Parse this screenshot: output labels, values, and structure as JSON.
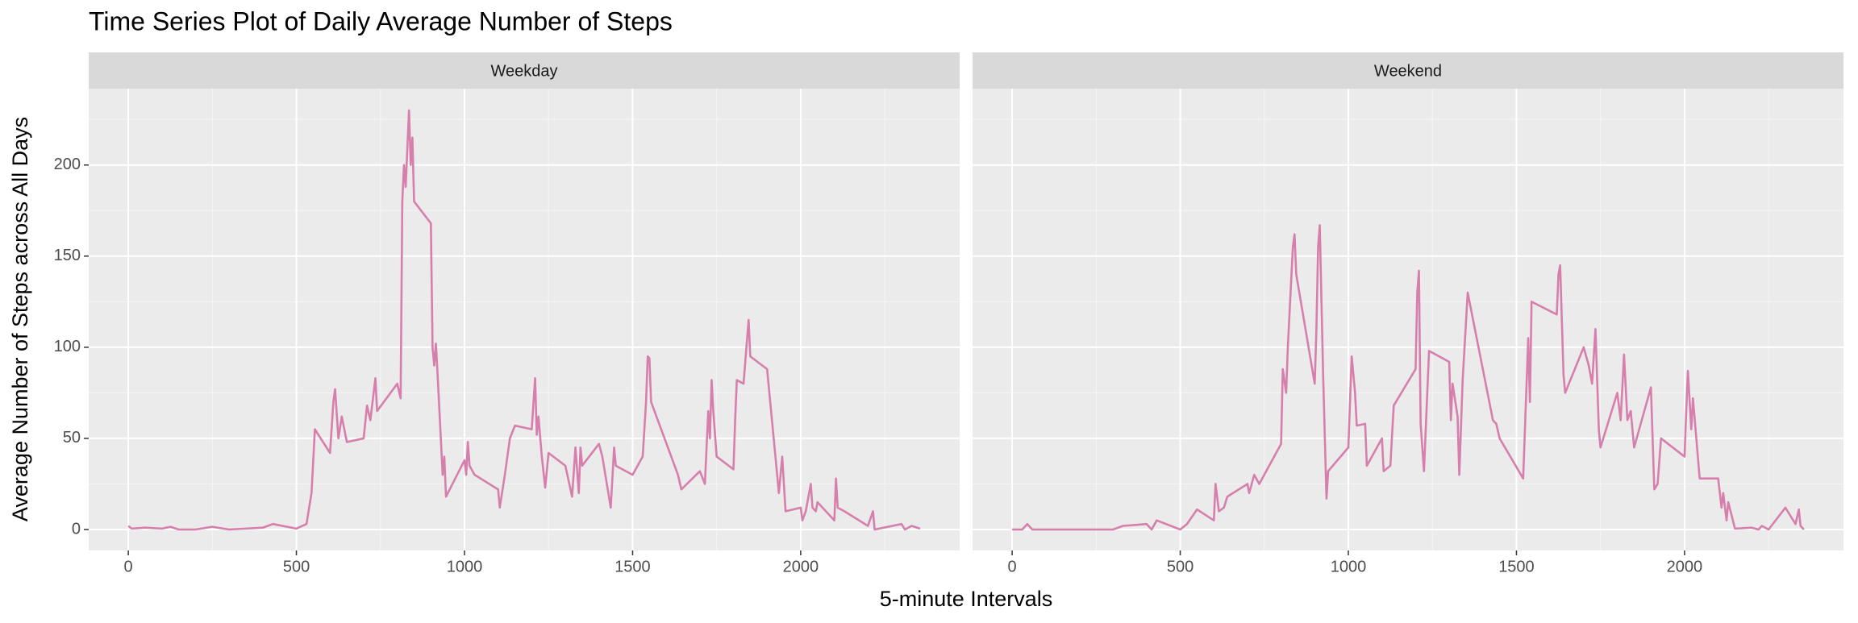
{
  "chart_data": {
    "type": "line",
    "title": "Time Series Plot of Daily Average Number of Steps",
    "x_label": "5-minute Intervals",
    "y_label": "Average Number of Steps across All Days",
    "color": "#d77fac",
    "grid": true,
    "xlim": [
      -117.75,
      2472.75
    ],
    "ylim": [
      -11.5,
      241.9
    ],
    "xticks": [
      0,
      500,
      1000,
      1500,
      2000
    ],
    "yticks": [
      0,
      50,
      100,
      150,
      200
    ],
    "minor_xticks": [
      250,
      750,
      1250,
      1750,
      2250
    ],
    "minor_yticks": [
      25,
      75,
      125,
      175,
      225
    ],
    "facets": [
      {
        "label": "Weekday",
        "x": [
          0,
          10,
          50,
          100,
          125,
          150,
          200,
          250,
          300,
          400,
          430,
          500,
          530,
          545,
          555,
          600,
          610,
          615,
          625,
          635,
          650,
          700,
          710,
          720,
          735,
          740,
          800,
          810,
          815,
          820,
          825,
          835,
          840,
          845,
          850,
          900,
          905,
          910,
          915,
          920,
          935,
          940,
          945,
          1000,
          1005,
          1010,
          1015,
          1030,
          1100,
          1105,
          1120,
          1135,
          1150,
          1200,
          1210,
          1215,
          1220,
          1230,
          1240,
          1250,
          1300,
          1320,
          1330,
          1340,
          1345,
          1350,
          1400,
          1410,
          1435,
          1445,
          1450,
          1500,
          1530,
          1540,
          1545,
          1550,
          1555,
          1635,
          1645,
          1700,
          1715,
          1725,
          1730,
          1735,
          1740,
          1750,
          1800,
          1805,
          1810,
          1830,
          1845,
          1850,
          1900,
          1930,
          1935,
          1945,
          1955,
          2000,
          2005,
          2015,
          2030,
          2035,
          2045,
          2050,
          2100,
          2105,
          2110,
          2130,
          2200,
          2215,
          2220,
          2300,
          2310,
          2330,
          2355
        ],
        "values": [
          2,
          0.5,
          1,
          0.5,
          1.5,
          0,
          0,
          1.5,
          0,
          1,
          3,
          0.5,
          3,
          20,
          55,
          42,
          70,
          77,
          50,
          62,
          48,
          50,
          68,
          60,
          83,
          65,
          80,
          72,
          180,
          200,
          188,
          230,
          200,
          215,
          180,
          168,
          100,
          90,
          102,
          85,
          30,
          40,
          18,
          38,
          30,
          48,
          35,
          30,
          22,
          12,
          30,
          50,
          57,
          55,
          83,
          52,
          62,
          40,
          23,
          42,
          35,
          18,
          45,
          20,
          45,
          35,
          47,
          40,
          12,
          45,
          35,
          30,
          40,
          70,
          95,
          94,
          70,
          30,
          22,
          32,
          25,
          65,
          50,
          82,
          65,
          40,
          33,
          60,
          82,
          80,
          115,
          95,
          88,
          30,
          20,
          40,
          10,
          12,
          5,
          10,
          25,
          12,
          10,
          15,
          5,
          28,
          12,
          10,
          2,
          10,
          0,
          3,
          0,
          2,
          0.5
        ]
      },
      {
        "label": "Weekend",
        "x": [
          0,
          30,
          45,
          60,
          300,
          330,
          400,
          415,
          430,
          500,
          520,
          550,
          600,
          605,
          615,
          630,
          640,
          700,
          705,
          720,
          735,
          800,
          805,
          815,
          820,
          835,
          840,
          845,
          900,
          905,
          910,
          915,
          925,
          935,
          940,
          1000,
          1010,
          1020,
          1025,
          1050,
          1055,
          1100,
          1105,
          1125,
          1135,
          1200,
          1205,
          1210,
          1215,
          1225,
          1240,
          1300,
          1305,
          1310,
          1325,
          1330,
          1340,
          1355,
          1430,
          1440,
          1450,
          1520,
          1535,
          1540,
          1545,
          1620,
          1625,
          1630,
          1640,
          1645,
          1700,
          1715,
          1725,
          1735,
          1745,
          1750,
          1800,
          1810,
          1820,
          1830,
          1840,
          1850,
          1900,
          1910,
          1920,
          1930,
          2000,
          2005,
          2010,
          2020,
          2025,
          2035,
          2045,
          2100,
          2110,
          2115,
          2125,
          2130,
          2150,
          2200,
          2220,
          2230,
          2250,
          2300,
          2330,
          2340,
          2345,
          2355
        ],
        "values": [
          0,
          0,
          3,
          0,
          0,
          2,
          3,
          0,
          5,
          0,
          3,
          11,
          5,
          25,
          10,
          12,
          18,
          25,
          20,
          30,
          25,
          47,
          88,
          75,
          100,
          155,
          162,
          140,
          80,
          110,
          155,
          167,
          85,
          17,
          32,
          45,
          95,
          75,
          57,
          58,
          35,
          50,
          32,
          35,
          68,
          88,
          130,
          142,
          58,
          32,
          98,
          92,
          60,
          80,
          62,
          30,
          82,
          130,
          60,
          58,
          50,
          28,
          105,
          70,
          125,
          118,
          140,
          145,
          85,
          75,
          100,
          90,
          80,
          110,
          55,
          45,
          75,
          60,
          96,
          60,
          65,
          45,
          78,
          22,
          25,
          50,
          40,
          65,
          87,
          55,
          72,
          50,
          28,
          28,
          12,
          20,
          5,
          15,
          0.5,
          1,
          0,
          2,
          0,
          12,
          3,
          11,
          2,
          0
        ]
      }
    ]
  }
}
